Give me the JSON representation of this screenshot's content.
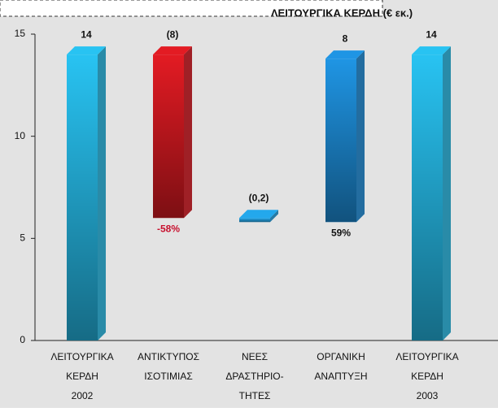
{
  "chart_data": {
    "type": "waterfall",
    "title": "ΛΕΙΤΟΥΡΓΙΚΑ ΚΕΡΔΗ (€ εκ.)",
    "categories": [
      [
        "ΛΕΙΤΟΥΡΓΙΚΑ",
        "ΚΕΡΔΗ",
        "2002"
      ],
      [
        "ΑΝΤΙΚΤΥΠΟΣ",
        "ΙΣΟΤΙΜΙΑΣ"
      ],
      [
        "ΝΕΕΣ",
        "ΔΡΑΣΤΗΡΙΟ-",
        "ΤΗΤΕΣ"
      ],
      [
        "ΟΡΓΑΝΙΚΗ",
        "ΑΝΑΠΤΥΞΗ"
      ],
      [
        "ΛΕΙΤΟΥΡΓΙΚΑ",
        "ΚΕΡΔΗ",
        "2003"
      ]
    ],
    "values": [
      14,
      -8,
      -0.2,
      8,
      14
    ],
    "value_labels": [
      "14",
      "(8)",
      "(0,2)",
      "8",
      "14"
    ],
    "totals": [
      true,
      false,
      false,
      false,
      true
    ],
    "notes": [
      null,
      "-58%",
      null,
      "59%",
      null
    ],
    "note_color": "#c8102e",
    "colors": [
      "#28c3f2",
      "#e31b23",
      "#23a8ec",
      "#1f95e4",
      "#28c3f2"
    ],
    "ylim": [
      0,
      15
    ],
    "yticks": [
      0,
      5,
      10,
      15
    ]
  }
}
